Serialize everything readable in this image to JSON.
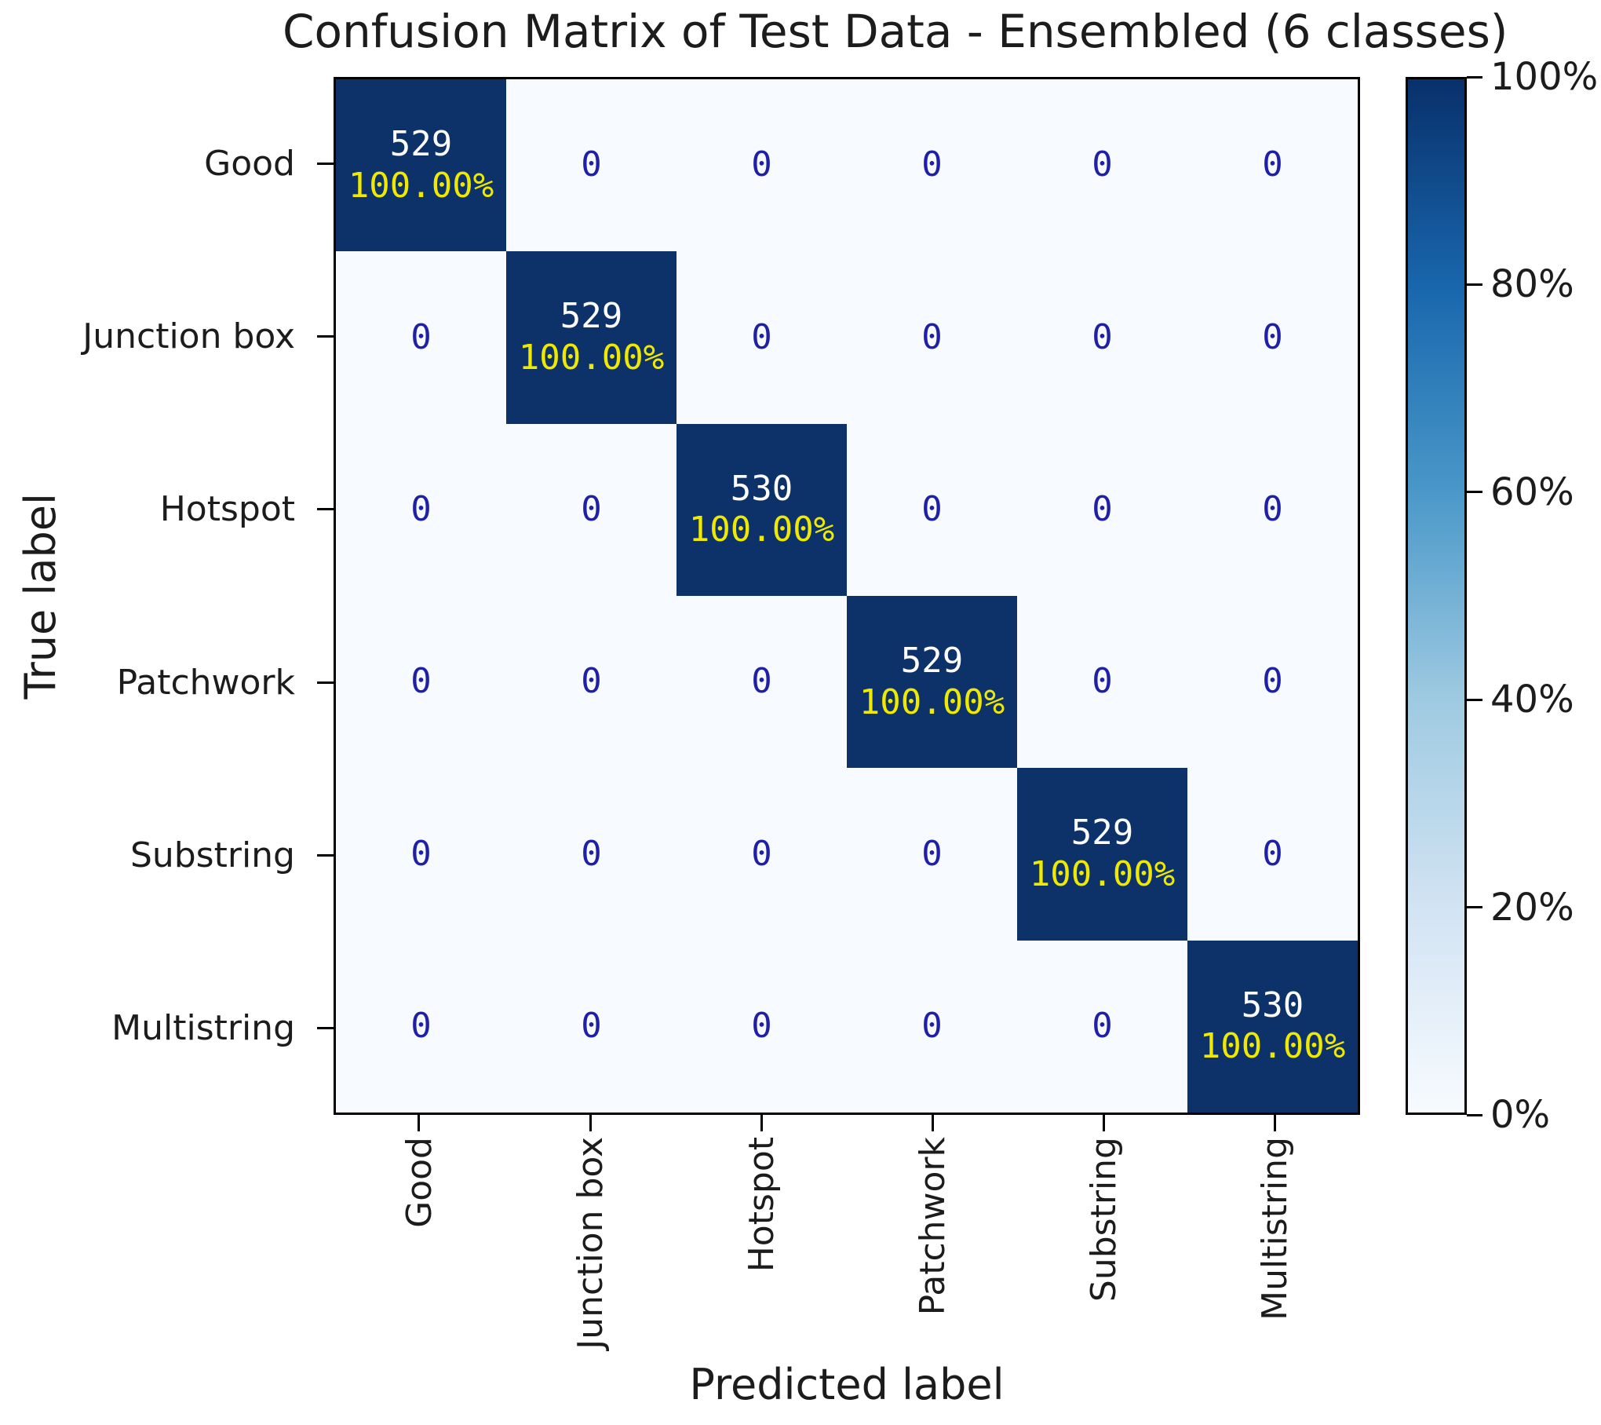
{
  "title": "Confusion Matrix of Test Data - Ensembled (6 classes)",
  "chart_data": {
    "type": "heatmap",
    "title": "Confusion Matrix of Test Data - Ensembled (6 classes)",
    "xlabel": "Predicted label",
    "ylabel": "True label",
    "classes": [
      "Good",
      "Junction box",
      "Hotspot",
      "Patchwork",
      "Substring",
      "Multistring"
    ],
    "matrix": [
      [
        529,
        0,
        0,
        0,
        0,
        0
      ],
      [
        0,
        529,
        0,
        0,
        0,
        0
      ],
      [
        0,
        0,
        530,
        0,
        0,
        0
      ],
      [
        0,
        0,
        0,
        529,
        0,
        0
      ],
      [
        0,
        0,
        0,
        0,
        529,
        0
      ],
      [
        0,
        0,
        0,
        0,
        0,
        530
      ]
    ],
    "diagonal_percent_labels": [
      "100.00%",
      "100.00%",
      "100.00%",
      "100.00%",
      "100.00%",
      "100.00%"
    ],
    "colorbar": {
      "orientation": "vertical",
      "position": "right",
      "tick_labels": [
        "100%",
        "80%",
        "60%",
        "40%",
        "20%",
        "0%"
      ],
      "min_label": "0%",
      "max_label": "100%"
    },
    "grid": false,
    "colors": {
      "diagonal_cell_bg": "#0c3269",
      "offdiagonal_cell_bg": "#f7fbff",
      "zero_text": "#2020a6",
      "count_text": "#ffffff",
      "percent_text": "#efe900",
      "colorbar_top": "#08306b",
      "colorbar_bottom": "#f7fbff",
      "axis_text": "#1c1c1c"
    }
  }
}
